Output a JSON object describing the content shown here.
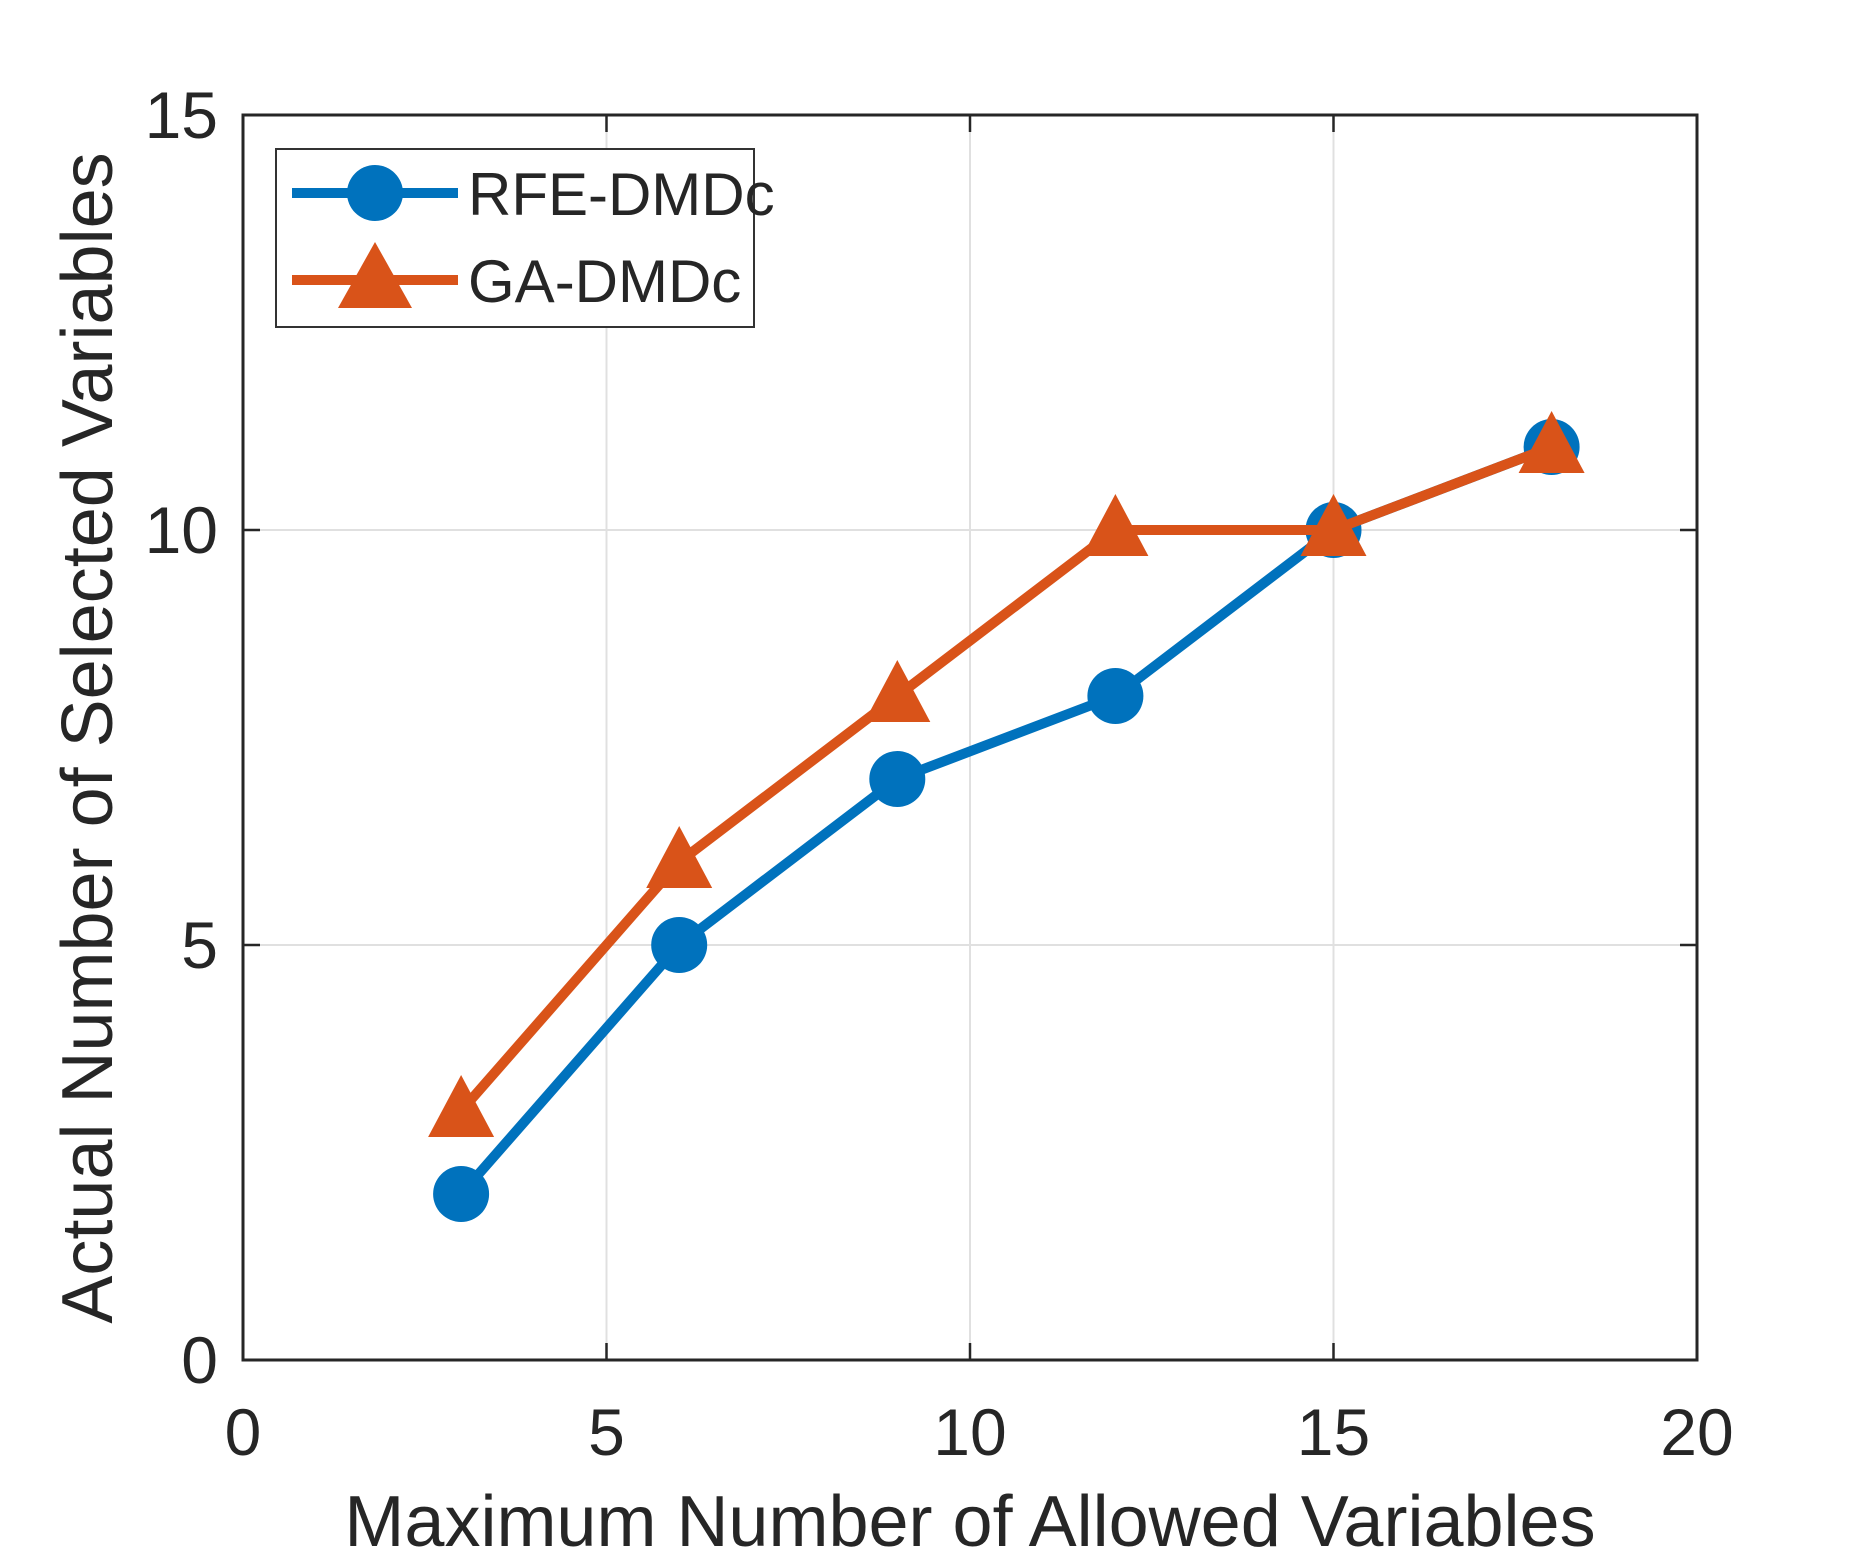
{
  "chart_data": {
    "type": "line",
    "title": "",
    "xlabel": "Maximum Number of Allowed Variables",
    "ylabel": "Actual Number of Selected Variables",
    "xlim": [
      0,
      20
    ],
    "ylim": [
      0,
      15
    ],
    "xticks": [
      0,
      5,
      10,
      15,
      20
    ],
    "yticks": [
      0,
      5,
      10,
      15
    ],
    "grid": true,
    "legend_position": "top-left",
    "x": [
      3,
      6,
      9,
      12,
      15,
      18
    ],
    "series": [
      {
        "name": "RFE-DMDc",
        "marker": "circle",
        "color": "#0072BD",
        "values": [
          2,
          5,
          7,
          8,
          10,
          11
        ]
      },
      {
        "name": "GA-DMDc",
        "marker": "triangle",
        "color": "#D95319",
        "values": [
          3,
          6,
          8,
          10,
          10,
          11
        ]
      }
    ]
  },
  "style": {
    "background": "#FFFFFF",
    "axis_color": "#262626",
    "grid_color": "#E0E0E0",
    "text_color": "#262626",
    "legend_background": "#FFFFFF",
    "legend_border_color": "#333333"
  }
}
